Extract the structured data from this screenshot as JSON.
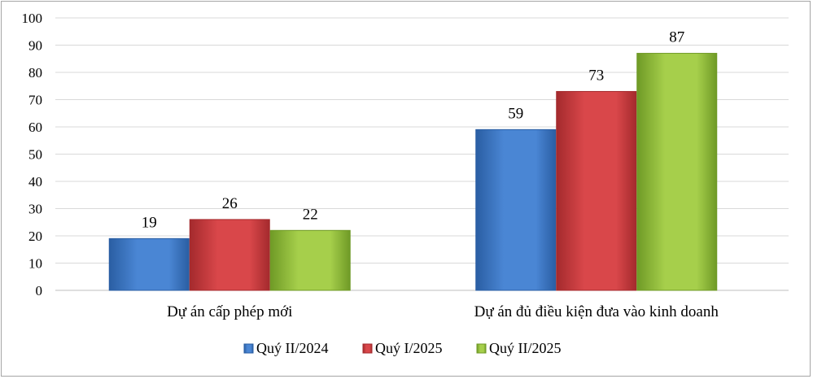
{
  "chart_data": {
    "type": "bar",
    "title": "",
    "xlabel": "",
    "ylabel": "",
    "ylim": [
      0,
      100
    ],
    "ytick_step": 10,
    "grid": true,
    "legend_position": "bottom",
    "categories": [
      "Dự án cấp phép mới",
      "Dự án đủ điều kiện đưa vào kinh doanh"
    ],
    "series": [
      {
        "name": "Quý II/2024",
        "values": [
          19,
          59
        ],
        "color": "#4a86d4",
        "color_dark": "#2a5ea3"
      },
      {
        "name": "Quý I/2025",
        "values": [
          26,
          73
        ],
        "color": "#d9474a",
        "color_dark": "#a42a2d"
      },
      {
        "name": "Quý II/2025",
        "values": [
          22,
          87
        ],
        "color": "#a6cf4b",
        "color_dark": "#6f9a26"
      }
    ]
  }
}
